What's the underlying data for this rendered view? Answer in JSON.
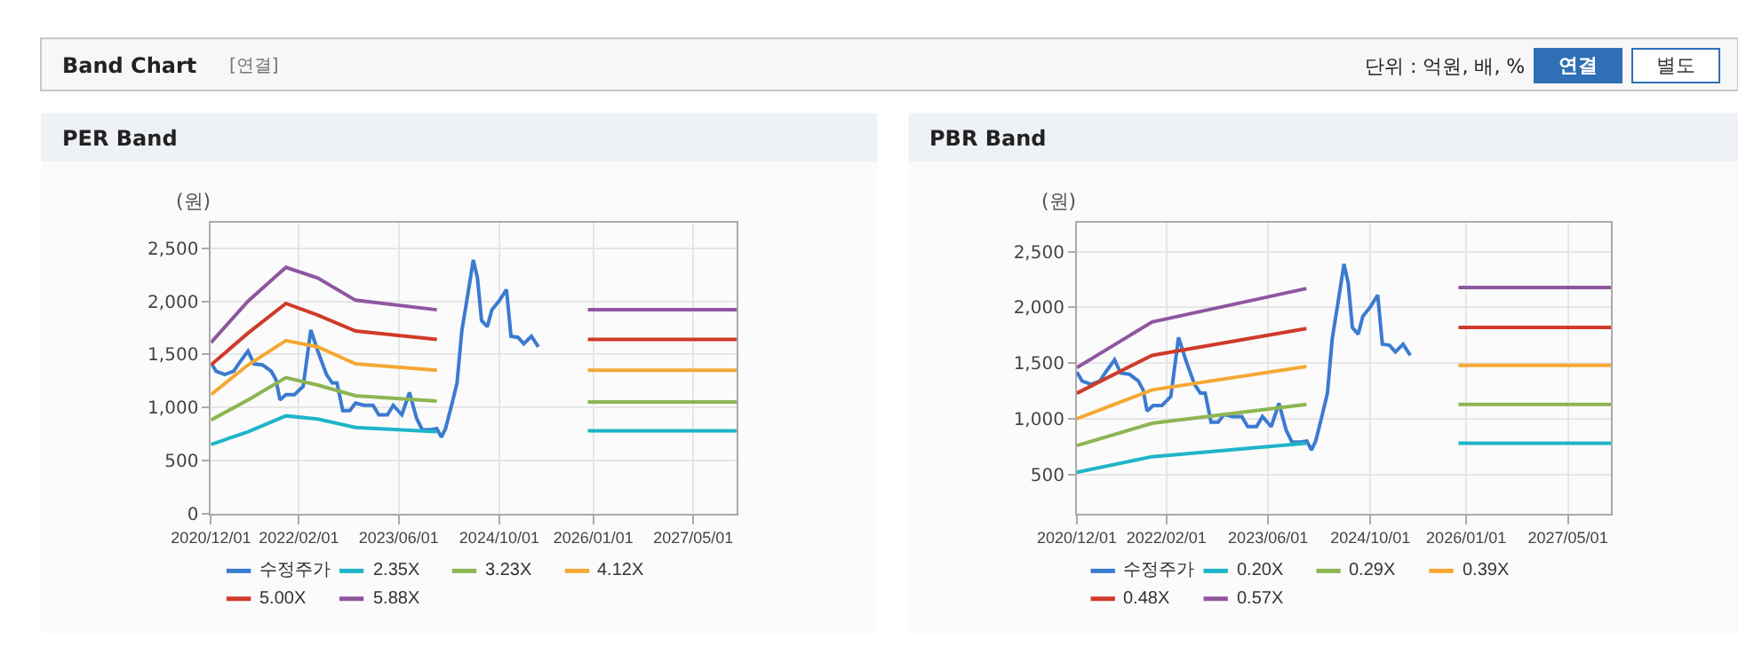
{
  "chart_data": [
    {
      "type": "line",
      "title": "PER Band",
      "ylabel": "(원)",
      "annotations": [
        "Band Chart",
        "[연결]",
        "단위 : 억원, 배, %",
        "연결",
        "별도"
      ],
      "xlim": [
        "2020-12-01",
        "2027-11-28"
      ],
      "xticks": [
        {
          "value": "2020-12-01",
          "label": "2020/12/01"
        },
        {
          "value": "2022-02-01",
          "label": "2022/02/01"
        },
        {
          "value": "2023-06-01",
          "label": "2023/06/01"
        },
        {
          "value": "2024-10-01",
          "label": "2024/10/01"
        },
        {
          "value": "2026-01-01",
          "label": "2026/01/01"
        },
        {
          "value": "2027-05-01",
          "label": "2027/05/01"
        }
      ],
      "ylim": [
        0,
        2740
      ],
      "yticks": [
        0,
        500,
        {
          "value": 1000,
          "label": "1,000"
        },
        {
          "value": 1500,
          "label": "1,500"
        },
        {
          "value": 2000,
          "label": "2,000"
        },
        {
          "value": 2500,
          "label": "2,500"
        }
      ],
      "grid": true,
      "legend": "bottom",
      "marker": "none",
      "line_style": "solid",
      "series": [
        {
          "name": "수정주가",
          "color": "#3b7bd0",
          "x": [
            "2020-12-01",
            "2020-12-26",
            "2021-02-07",
            "2021-03-21",
            "2021-04-18",
            "2021-05-30",
            "2021-06-28",
            "2021-08-09",
            "2021-09-20",
            "2021-10-13",
            "2021-11-01",
            "2021-11-30",
            "2022-01-11",
            "2022-02-22",
            "2022-03-31",
            "2022-05-04",
            "2022-06-15",
            "2022-07-13",
            "2022-08-05",
            "2022-09-02",
            "2022-10-06",
            "2022-11-03",
            "2022-12-15",
            "2023-01-27",
            "2023-02-24",
            "2023-04-07",
            "2023-05-05",
            "2023-06-16",
            "2023-07-23",
            "2023-08-26",
            "2023-09-23",
            "2023-11-04",
            "2023-12-03",
            "2023-12-25",
            "2024-01-14",
            "2024-02-11",
            "2024-03-10",
            "2024-04-02",
            "2024-04-30",
            "2024-05-28",
            "2024-06-17",
            "2024-07-07",
            "2024-08-04",
            "2024-08-26",
            "2024-09-29",
            "2024-11-05",
            "2024-11-27",
            "2024-12-31",
            "2025-01-28",
            "2025-03-06",
            "2025-04-09"
          ],
          "values": [
            1420,
            1340,
            1310,
            1340,
            1420,
            1530,
            1410,
            1400,
            1340,
            1260,
            1070,
            1120,
            1120,
            1200,
            1730,
            1530,
            1310,
            1230,
            1230,
            970,
            970,
            1040,
            1020,
            1020,
            930,
            930,
            1020,
            930,
            1140,
            900,
            790,
            790,
            800,
            720,
            800,
            1010,
            1230,
            1720,
            2050,
            2390,
            2220,
            1820,
            1760,
            1920,
            2000,
            2110,
            1670,
            1660,
            1600,
            1670,
            1570
          ]
        },
        {
          "name": "2.35X",
          "color": "#1fb5c8",
          "x": [
            "2020-12-01",
            "2021-05-30",
            "2021-11-30",
            "2022-05-04",
            "2022-11-03",
            "2023-12-03",
            "2024-12-01",
            "2025-12-05",
            "2027-11-28"
          ],
          "values": [
            650,
            770,
            920,
            890,
            810,
            770,
            null,
            780,
            780
          ]
        },
        {
          "name": "3.23X",
          "color": "#8db552",
          "x": [
            "2020-12-01",
            "2021-05-30",
            "2021-11-30",
            "2022-05-04",
            "2022-11-03",
            "2023-12-03",
            "2024-12-01",
            "2025-12-05",
            "2027-11-28"
          ],
          "values": [
            880,
            1070,
            1280,
            1210,
            1110,
            1060,
            null,
            1050,
            1050
          ]
        },
        {
          "name": "4.12X",
          "color": "#f5a833",
          "x": [
            "2020-12-01",
            "2021-05-30",
            "2021-11-30",
            "2022-05-04",
            "2022-11-03",
            "2023-12-03",
            "2024-12-01",
            "2025-12-05",
            "2027-11-28"
          ],
          "values": [
            1120,
            1400,
            1630,
            1570,
            1410,
            1350,
            null,
            1350,
            1350
          ]
        },
        {
          "name": "5.00X",
          "color": "#d03a2a",
          "x": [
            "2020-12-01",
            "2021-05-30",
            "2021-11-30",
            "2022-05-04",
            "2022-11-03",
            "2023-12-03",
            "2024-12-01",
            "2025-12-05",
            "2027-11-28"
          ],
          "values": [
            1400,
            1700,
            1980,
            1870,
            1720,
            1640,
            null,
            1640,
            1640
          ]
        },
        {
          "name": "5.88X",
          "color": "#8e56a0",
          "x": [
            "2020-12-01",
            "2021-05-30",
            "2021-11-30",
            "2022-05-04",
            "2022-11-03",
            "2023-12-03",
            "2024-12-01",
            "2025-12-05",
            "2027-11-28"
          ],
          "values": [
            1610,
            2000,
            2320,
            2220,
            2010,
            1920,
            null,
            1920,
            1920
          ]
        }
      ]
    },
    {
      "type": "line",
      "title": "PBR Band",
      "ylabel": "(원)",
      "xlim": [
        "2020-12-01",
        "2027-11-24"
      ],
      "xticks": [
        {
          "value": "2020-12-01",
          "label": "2020/12/01"
        },
        {
          "value": "2022-02-01",
          "label": "2022/02/01"
        },
        {
          "value": "2023-06-01",
          "label": "2023/06/01"
        },
        {
          "value": "2024-10-01",
          "label": "2024/10/01"
        },
        {
          "value": "2026-01-01",
          "label": "2026/01/01"
        },
        {
          "value": "2027-05-01",
          "label": "2027/05/01"
        }
      ],
      "ylim": [
        150,
        2760
      ],
      "yticks": [
        500,
        {
          "value": 1000,
          "label": "1,000"
        },
        {
          "value": 1500,
          "label": "1,500"
        },
        {
          "value": 2000,
          "label": "2,000"
        },
        {
          "value": 2500,
          "label": "2,500"
        }
      ],
      "grid": true,
      "legend": "bottom",
      "marker": "none",
      "line_style": "solid",
      "series": [
        {
          "name": "수정주가",
          "color": "#3b7bd0",
          "x": [
            "2020-12-01",
            "2020-12-26",
            "2021-02-07",
            "2021-03-21",
            "2021-04-18",
            "2021-05-30",
            "2021-06-28",
            "2021-08-09",
            "2021-09-20",
            "2021-10-13",
            "2021-11-01",
            "2021-11-30",
            "2022-01-11",
            "2022-02-22",
            "2022-03-31",
            "2022-05-04",
            "2022-06-15",
            "2022-07-13",
            "2022-08-05",
            "2022-09-02",
            "2022-10-06",
            "2022-11-03",
            "2022-12-15",
            "2023-01-27",
            "2023-02-24",
            "2023-04-07",
            "2023-05-05",
            "2023-06-16",
            "2023-07-23",
            "2023-08-26",
            "2023-09-23",
            "2023-11-04",
            "2023-12-03",
            "2023-12-25",
            "2024-01-14",
            "2024-02-11",
            "2024-03-10",
            "2024-04-02",
            "2024-04-30",
            "2024-05-28",
            "2024-06-17",
            "2024-07-07",
            "2024-08-04",
            "2024-08-26",
            "2024-09-29",
            "2024-11-05",
            "2024-11-27",
            "2024-12-31",
            "2025-01-28",
            "2025-03-06",
            "2025-04-09"
          ],
          "values": [
            1420,
            1340,
            1310,
            1340,
            1420,
            1530,
            1410,
            1400,
            1340,
            1260,
            1070,
            1120,
            1120,
            1200,
            1730,
            1530,
            1310,
            1230,
            1230,
            970,
            970,
            1040,
            1020,
            1020,
            930,
            930,
            1020,
            930,
            1140,
            900,
            790,
            790,
            800,
            720,
            800,
            1010,
            1230,
            1720,
            2050,
            2390,
            2220,
            1820,
            1760,
            1920,
            2000,
            2110,
            1670,
            1660,
            1600,
            1670,
            1570
          ]
        },
        {
          "name": "0.20X",
          "color": "#1fb5c8",
          "x": [
            "2020-12-01",
            "2021-11-25",
            "2023-12-01",
            "2024-12-01",
            "2025-11-25",
            "2027-11-24"
          ],
          "values": [
            520,
            660,
            780,
            null,
            780,
            780
          ]
        },
        {
          "name": "0.29X",
          "color": "#8db552",
          "x": [
            "2020-12-01",
            "2021-11-25",
            "2023-12-01",
            "2024-12-01",
            "2025-11-25",
            "2027-11-24"
          ],
          "values": [
            760,
            960,
            1130,
            null,
            1130,
            1130
          ]
        },
        {
          "name": "0.39X",
          "color": "#f5a833",
          "x": [
            "2020-12-01",
            "2021-11-25",
            "2023-12-01",
            "2024-12-01",
            "2025-11-25",
            "2027-11-24"
          ],
          "values": [
            1000,
            1260,
            1470,
            null,
            1480,
            1480
          ]
        },
        {
          "name": "0.48X",
          "color": "#d03a2a",
          "x": [
            "2020-12-01",
            "2021-11-25",
            "2023-12-01",
            "2024-12-01",
            "2025-11-25",
            "2027-11-24"
          ],
          "values": [
            1230,
            1570,
            1810,
            null,
            1820,
            1820
          ]
        },
        {
          "name": "0.57X",
          "color": "#8e56a0",
          "x": [
            "2020-12-01",
            "2021-11-25",
            "2023-12-01",
            "2024-12-01",
            "2025-11-25",
            "2027-11-24"
          ],
          "values": [
            1460,
            1870,
            2170,
            null,
            2180,
            2180
          ]
        }
      ]
    }
  ]
}
